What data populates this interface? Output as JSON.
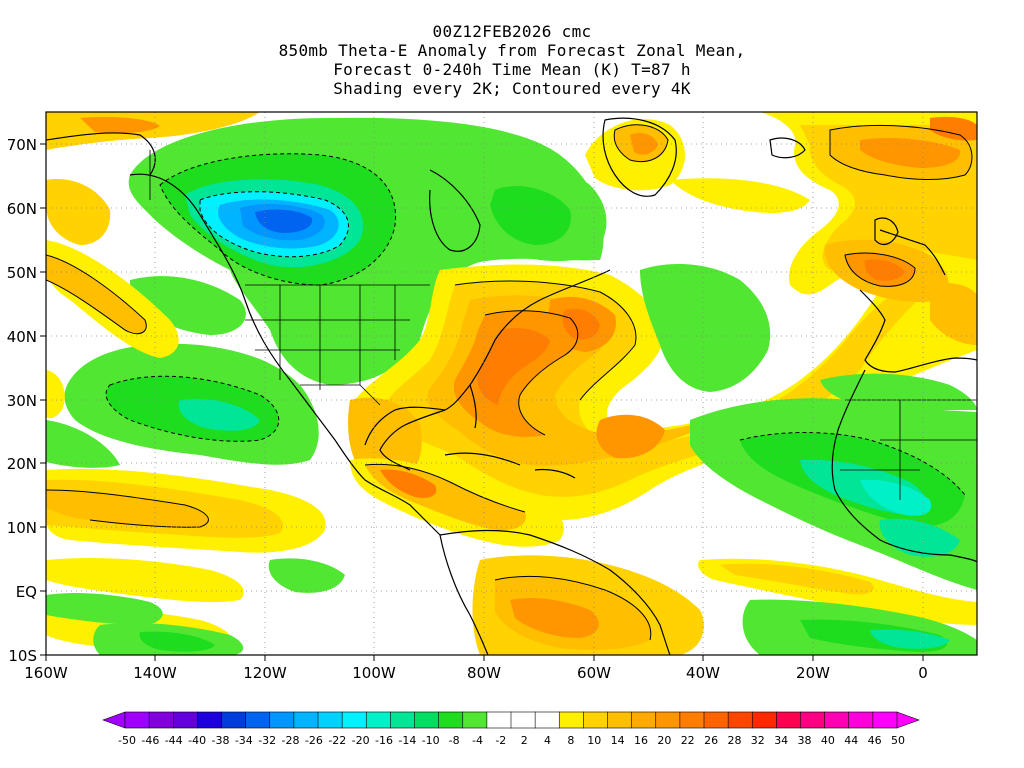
{
  "title": {
    "line1": "00Z12FEB2026 cmc",
    "line2": "850mb Theta-E Anomaly from Forecast Zonal Mean,",
    "line3": "Forecast 0-240h Time Mean (K) T=87 h",
    "line4": "Shading every 2K; Contoured every 4K"
  },
  "axes": {
    "lon_labels": [
      "160W",
      "140W",
      "120W",
      "100W",
      "80W",
      "60W",
      "40W",
      "20W",
      "0"
    ],
    "lat_labels": [
      "70N",
      "60N",
      "50N",
      "40N",
      "30N",
      "20N",
      "10N",
      "EQ",
      "10S"
    ],
    "lon_range": [
      -160,
      10
    ],
    "lat_range": [
      -10,
      75
    ]
  },
  "colorbar": {
    "labels": [
      "-50",
      "-46",
      "-44",
      "-40",
      "-38",
      "-34",
      "-32",
      "-28",
      "-26",
      "-22",
      "-20",
      "-16",
      "-14",
      "-10",
      "-8",
      "-4",
      "-2",
      "2",
      "4",
      "8",
      "10",
      "14",
      "16",
      "20",
      "22",
      "26",
      "28",
      "32",
      "34",
      "38",
      "40",
      "44",
      "46",
      "50"
    ],
    "colors": [
      "#a000ff",
      "#8200dc",
      "#6400dc",
      "#1e00dc",
      "#003cdc",
      "#0064f0",
      "#0096ff",
      "#00b4ff",
      "#00d2ff",
      "#00f0ff",
      "#00f0c8",
      "#00e696",
      "#00dc64",
      "#1edc1e",
      "#50e632",
      "#ffffff",
      "#ffffff",
      "#ffffff",
      "#fff000",
      "#ffd200",
      "#ffbe00",
      "#ffaa00",
      "#ff9600",
      "#ff7d00",
      "#ff6400",
      "#ff4600",
      "#ff2800",
      "#ff0050",
      "#ff0082",
      "#ff00b4",
      "#ff00dc",
      "#ff00ff"
    ]
  },
  "palette": {
    "green": "#50e632",
    "light_green": "#1edc1e",
    "teal": "#00e696",
    "cyan": "#00f0ff",
    "blue_light": "#00b4ff",
    "blue": "#0064f0",
    "yellow": "#fff000",
    "gold": "#ffd200",
    "orange_light": "#ffbe00",
    "orange": "#ff9600",
    "orange_dark": "#ff7d00",
    "red_orange": "#ff6400"
  }
}
